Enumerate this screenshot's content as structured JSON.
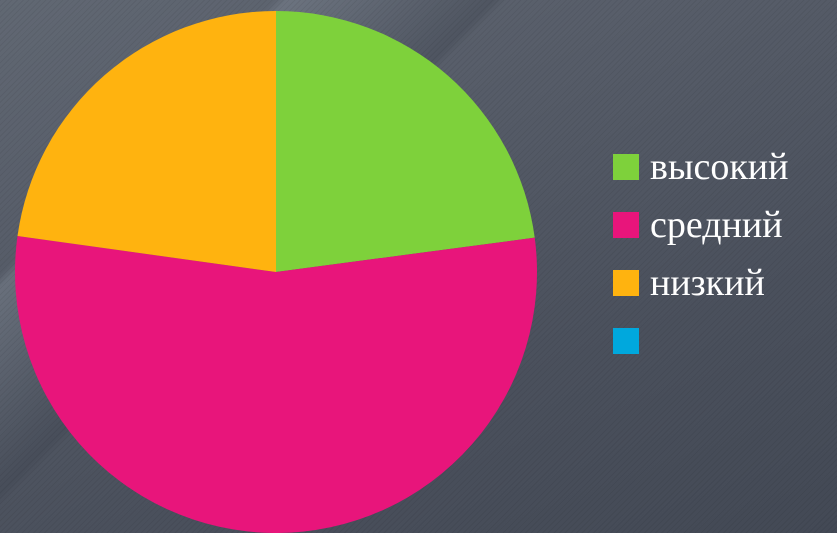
{
  "chart_data": {
    "type": "pie",
    "categories": [
      "высокий",
      "средний",
      "низкий",
      ""
    ],
    "values": [
      22.9,
      54.3,
      22.8,
      0
    ],
    "colors": [
      "#7ed13b",
      "#e8157b",
      "#ffb30f",
      "#00a8dd"
    ],
    "start_angle_deg": 0,
    "legend": "right",
    "title": ""
  }
}
